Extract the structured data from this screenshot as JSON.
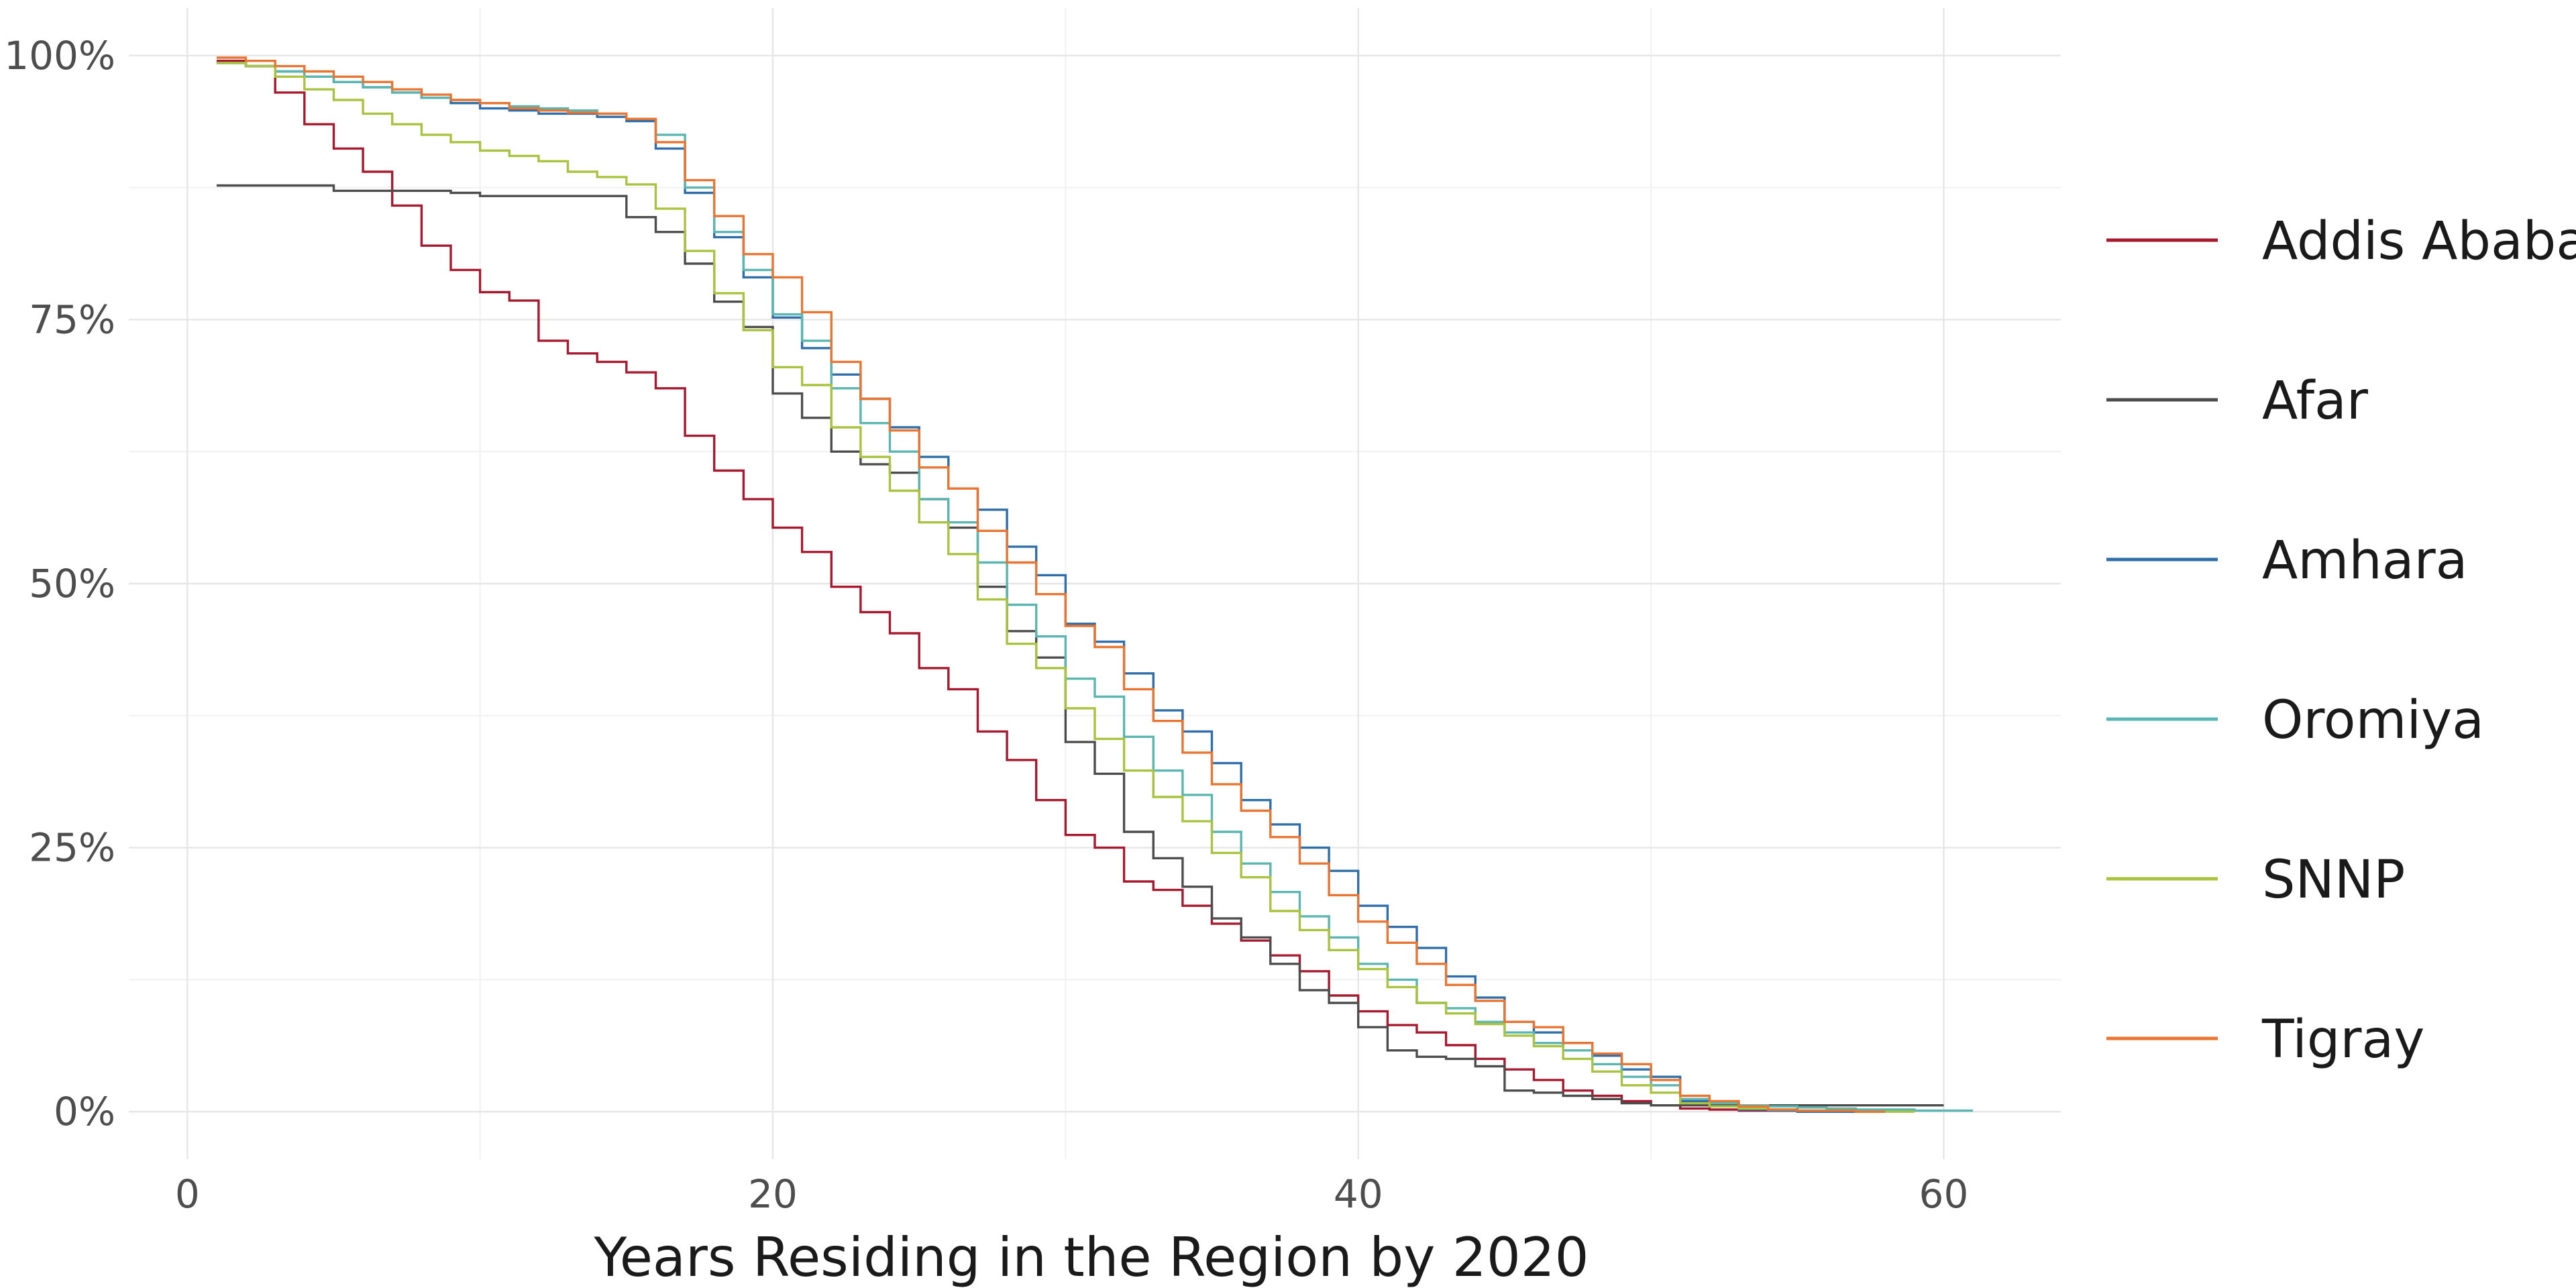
{
  "chart_data": {
    "type": "line",
    "step": true,
    "title": "",
    "xlabel": "Years Residing in the Region by 2020",
    "ylabel": "",
    "xlim": [
      -2,
      64
    ],
    "ylim": [
      -0.045,
      1.045
    ],
    "x_ticks": [
      0,
      20,
      40,
      60
    ],
    "y_ticks": [
      0,
      0.25,
      0.5,
      0.75,
      1.0
    ],
    "y_tick_labels": [
      "0%",
      "25%",
      "50%",
      "75%",
      "100%"
    ],
    "grid": true,
    "legend_position": "right",
    "series": [
      {
        "name": "Addis Ababa",
        "color": "#a6192e",
        "x": [
          1,
          2,
          3,
          4,
          5,
          6,
          7,
          8,
          9,
          10,
          11,
          12,
          13,
          14,
          15,
          16,
          17,
          18,
          19,
          20,
          21,
          22,
          23,
          24,
          25,
          26,
          27,
          28,
          29,
          30,
          31,
          32,
          33,
          34,
          35,
          36,
          37,
          38,
          39,
          40,
          41,
          42,
          43,
          44,
          45,
          46,
          47,
          48,
          49,
          50,
          51,
          52,
          53,
          54,
          55,
          56,
          57,
          58
        ],
        "y": [
          0.995,
          0.99,
          0.965,
          0.935,
          0.912,
          0.89,
          0.858,
          0.82,
          0.797,
          0.776,
          0.768,
          0.73,
          0.718,
          0.71,
          0.7,
          0.685,
          0.64,
          0.607,
          0.58,
          0.553,
          0.53,
          0.497,
          0.473,
          0.453,
          0.42,
          0.4,
          0.36,
          0.333,
          0.295,
          0.262,
          0.25,
          0.218,
          0.21,
          0.195,
          0.178,
          0.162,
          0.148,
          0.133,
          0.11,
          0.095,
          0.082,
          0.075,
          0.063,
          0.05,
          0.04,
          0.03,
          0.02,
          0.015,
          0.01,
          0.006,
          0.003,
          0.002,
          0.001,
          0.001,
          0.0,
          0.0,
          0.0,
          0.0
        ]
      },
      {
        "name": "Afar",
        "color": "#4d4d4d",
        "x": [
          1,
          2,
          3,
          4,
          5,
          6,
          7,
          8,
          9,
          10,
          11,
          12,
          13,
          14,
          15,
          16,
          17,
          18,
          19,
          20,
          21,
          22,
          23,
          24,
          25,
          26,
          27,
          28,
          29,
          30,
          31,
          32,
          33,
          34,
          35,
          36,
          37,
          38,
          39,
          40,
          41,
          42,
          43,
          44,
          45,
          46,
          47,
          48,
          49,
          50,
          51,
          52,
          53,
          54,
          55,
          56,
          57,
          58,
          59,
          60
        ],
        "y": [
          0.877,
          0.877,
          0.877,
          0.877,
          0.872,
          0.872,
          0.872,
          0.872,
          0.87,
          0.867,
          0.867,
          0.867,
          0.867,
          0.867,
          0.847,
          0.833,
          0.803,
          0.767,
          0.743,
          0.68,
          0.657,
          0.625,
          0.613,
          0.605,
          0.58,
          0.553,
          0.497,
          0.455,
          0.43,
          0.35,
          0.32,
          0.265,
          0.24,
          0.213,
          0.183,
          0.165,
          0.14,
          0.115,
          0.103,
          0.08,
          0.058,
          0.052,
          0.05,
          0.043,
          0.02,
          0.018,
          0.015,
          0.012,
          0.008,
          0.006,
          0.006,
          0.006,
          0.006,
          0.006,
          0.006,
          0.006,
          0.006,
          0.006,
          0.006,
          0.006
        ]
      },
      {
        "name": "Amhara",
        "color": "#2f6ea8",
        "x": [
          1,
          2,
          3,
          4,
          5,
          6,
          7,
          8,
          9,
          10,
          11,
          12,
          13,
          14,
          15,
          16,
          17,
          18,
          19,
          20,
          21,
          22,
          23,
          24,
          25,
          26,
          27,
          28,
          29,
          30,
          31,
          32,
          33,
          34,
          35,
          36,
          37,
          38,
          39,
          40,
          41,
          42,
          43,
          44,
          45,
          46,
          47,
          48,
          49,
          50,
          51,
          52,
          53,
          54,
          55,
          56,
          57
        ],
        "y": [
          0.993,
          0.99,
          0.985,
          0.98,
          0.975,
          0.97,
          0.965,
          0.96,
          0.955,
          0.95,
          0.948,
          0.945,
          0.945,
          0.942,
          0.938,
          0.912,
          0.87,
          0.828,
          0.79,
          0.752,
          0.723,
          0.698,
          0.675,
          0.648,
          0.62,
          0.59,
          0.57,
          0.535,
          0.508,
          0.462,
          0.445,
          0.415,
          0.38,
          0.36,
          0.33,
          0.295,
          0.272,
          0.25,
          0.228,
          0.195,
          0.175,
          0.155,
          0.128,
          0.108,
          0.085,
          0.075,
          0.065,
          0.053,
          0.04,
          0.033,
          0.01,
          0.005,
          0.002,
          0.001,
          0.0,
          0.0,
          0.0
        ]
      },
      {
        "name": "Oromiya",
        "color": "#5bb5b0",
        "x": [
          1,
          2,
          3,
          4,
          5,
          6,
          7,
          8,
          9,
          10,
          11,
          12,
          13,
          14,
          15,
          16,
          17,
          18,
          19,
          20,
          21,
          22,
          23,
          24,
          25,
          26,
          27,
          28,
          29,
          30,
          31,
          32,
          33,
          34,
          35,
          36,
          37,
          38,
          39,
          40,
          41,
          42,
          43,
          44,
          45,
          46,
          47,
          48,
          49,
          50,
          51,
          52,
          53,
          54,
          55,
          56,
          57,
          58,
          59,
          60,
          61
        ],
        "y": [
          0.993,
          0.99,
          0.985,
          0.98,
          0.975,
          0.97,
          0.965,
          0.96,
          0.958,
          0.955,
          0.952,
          0.95,
          0.948,
          0.945,
          0.94,
          0.925,
          0.875,
          0.833,
          0.797,
          0.755,
          0.73,
          0.685,
          0.652,
          0.625,
          0.58,
          0.558,
          0.52,
          0.48,
          0.45,
          0.41,
          0.393,
          0.355,
          0.323,
          0.3,
          0.265,
          0.235,
          0.208,
          0.185,
          0.165,
          0.14,
          0.125,
          0.103,
          0.098,
          0.085,
          0.075,
          0.065,
          0.058,
          0.045,
          0.033,
          0.025,
          0.012,
          0.008,
          0.006,
          0.005,
          0.004,
          0.003,
          0.002,
          0.002,
          0.001,
          0.001,
          0.001
        ]
      },
      {
        "name": "SNNP",
        "color": "#a9c23f",
        "x": [
          1,
          2,
          3,
          4,
          5,
          6,
          7,
          8,
          9,
          10,
          11,
          12,
          13,
          14,
          15,
          16,
          17,
          18,
          19,
          20,
          21,
          22,
          23,
          24,
          25,
          26,
          27,
          28,
          29,
          30,
          31,
          32,
          33,
          34,
          35,
          36,
          37,
          38,
          39,
          40,
          41,
          42,
          43,
          44,
          45,
          46,
          47,
          48,
          49,
          50,
          51,
          52,
          53,
          54,
          55,
          56,
          57,
          58,
          59
        ],
        "y": [
          0.993,
          0.99,
          0.98,
          0.968,
          0.958,
          0.945,
          0.935,
          0.925,
          0.918,
          0.91,
          0.905,
          0.9,
          0.89,
          0.885,
          0.878,
          0.855,
          0.815,
          0.775,
          0.74,
          0.705,
          0.688,
          0.648,
          0.62,
          0.588,
          0.558,
          0.528,
          0.485,
          0.443,
          0.42,
          0.382,
          0.353,
          0.323,
          0.298,
          0.275,
          0.245,
          0.222,
          0.19,
          0.172,
          0.153,
          0.135,
          0.118,
          0.103,
          0.093,
          0.083,
          0.072,
          0.062,
          0.05,
          0.038,
          0.025,
          0.018,
          0.008,
          0.005,
          0.003,
          0.002,
          0.001,
          0.001,
          0.0,
          0.0,
          0.0
        ]
      },
      {
        "name": "Tigray",
        "color": "#e87532",
        "x": [
          1,
          2,
          3,
          4,
          5,
          6,
          7,
          8,
          9,
          10,
          11,
          12,
          13,
          14,
          15,
          16,
          17,
          18,
          19,
          20,
          21,
          22,
          23,
          24,
          25,
          26,
          27,
          28,
          29,
          30,
          31,
          32,
          33,
          34,
          35,
          36,
          37,
          38,
          39,
          40,
          41,
          42,
          43,
          44,
          45,
          46,
          47,
          48,
          49,
          50,
          51,
          52,
          53,
          54,
          55,
          56,
          57,
          58
        ],
        "y": [
          0.998,
          0.995,
          0.99,
          0.985,
          0.98,
          0.975,
          0.968,
          0.963,
          0.958,
          0.955,
          0.95,
          0.948,
          0.946,
          0.945,
          0.94,
          0.918,
          0.882,
          0.848,
          0.812,
          0.79,
          0.757,
          0.71,
          0.675,
          0.645,
          0.61,
          0.59,
          0.55,
          0.52,
          0.49,
          0.46,
          0.44,
          0.4,
          0.37,
          0.34,
          0.31,
          0.285,
          0.26,
          0.235,
          0.205,
          0.18,
          0.16,
          0.14,
          0.12,
          0.105,
          0.085,
          0.08,
          0.065,
          0.055,
          0.045,
          0.03,
          0.015,
          0.01,
          0.005,
          0.002,
          0.001,
          0.001,
          0.0,
          0.0
        ]
      }
    ]
  }
}
